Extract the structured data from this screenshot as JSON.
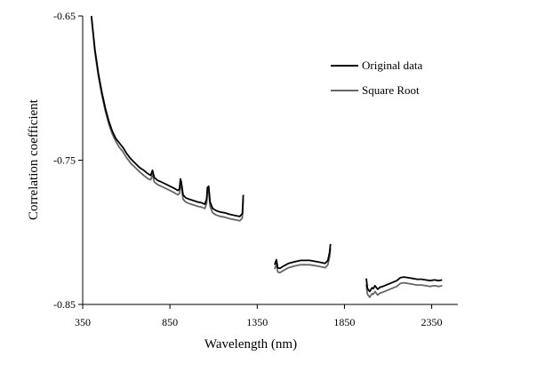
{
  "chart_data": {
    "type": "line",
    "title": "",
    "xlabel": "Wavelength (nm)",
    "ylabel": "Correlation coefficient",
    "xlim": [
      350,
      2500
    ],
    "ylim": [
      -0.85,
      -0.65
    ],
    "x_ticks": [
      350,
      850,
      1350,
      1850,
      2350
    ],
    "x_tick_labels": [
      "350",
      "850",
      "1350",
      "1850",
      "2350"
    ],
    "y_ticks": [
      -0.65,
      -0.75,
      -0.85
    ],
    "y_tick_labels": [
      "-0.65",
      "-0.75",
      "-0.85"
    ],
    "grid": false,
    "legend_position": "top-right",
    "series": [
      {
        "name": "Original data",
        "color": "#000000",
        "segments": [
          [
            [
              400,
              -0.65
            ],
            [
              420,
              -0.673
            ],
            [
              440,
              -0.69
            ],
            [
              460,
              -0.703
            ],
            [
              480,
              -0.714
            ],
            [
              500,
              -0.723
            ],
            [
              520,
              -0.73
            ],
            [
              540,
              -0.735
            ],
            [
              560,
              -0.738
            ],
            [
              580,
              -0.741
            ],
            [
              600,
              -0.745
            ],
            [
              625,
              -0.749
            ],
            [
              650,
              -0.752
            ],
            [
              675,
              -0.755
            ],
            [
              700,
              -0.757
            ],
            [
              725,
              -0.7595
            ],
            [
              740,
              -0.7605
            ],
            [
              750,
              -0.757
            ],
            [
              760,
              -0.762
            ],
            [
              780,
              -0.764
            ],
            [
              800,
              -0.765
            ],
            [
              825,
              -0.7665
            ],
            [
              850,
              -0.768
            ],
            [
              875,
              -0.7695
            ],
            [
              895,
              -0.771
            ],
            [
              905,
              -0.77
            ],
            [
              910,
              -0.763
            ],
            [
              915,
              -0.765
            ],
            [
              925,
              -0.774
            ],
            [
              940,
              -0.776
            ],
            [
              960,
              -0.777
            ],
            [
              985,
              -0.778
            ],
            [
              1010,
              -0.779
            ],
            [
              1030,
              -0.7795
            ],
            [
              1050,
              -0.7805
            ],
            [
              1060,
              -0.777
            ],
            [
              1065,
              -0.769
            ],
            [
              1072,
              -0.768
            ],
            [
              1080,
              -0.779
            ],
            [
              1095,
              -0.7835
            ],
            [
              1115,
              -0.785
            ],
            [
              1140,
              -0.786
            ],
            [
              1165,
              -0.7865
            ],
            [
              1190,
              -0.7875
            ],
            [
              1210,
              -0.788
            ],
            [
              1230,
              -0.7885
            ],
            [
              1250,
              -0.789
            ],
            [
              1265,
              -0.787
            ],
            [
              1270,
              -0.774
            ]
          ],
          [
            [
              1450,
              -0.8225
            ],
            [
              1460,
              -0.819
            ],
            [
              1468,
              -0.8245
            ],
            [
              1480,
              -0.825
            ],
            [
              1500,
              -0.8235
            ],
            [
              1530,
              -0.8215
            ],
            [
              1560,
              -0.8205
            ],
            [
              1600,
              -0.8195
            ],
            [
              1650,
              -0.8195
            ],
            [
              1700,
              -0.8205
            ],
            [
              1740,
              -0.8215
            ],
            [
              1755,
              -0.8195
            ],
            [
              1765,
              -0.814
            ],
            [
              1770,
              -0.808
            ]
          ],
          [
            [
              1975,
              -0.832
            ],
            [
              1982,
              -0.839
            ],
            [
              1995,
              -0.841
            ],
            [
              2008,
              -0.8385
            ],
            [
              2015,
              -0.839
            ],
            [
              2025,
              -0.837
            ],
            [
              2040,
              -0.8395
            ],
            [
              2055,
              -0.838
            ],
            [
              2070,
              -0.8375
            ],
            [
              2090,
              -0.8365
            ],
            [
              2110,
              -0.8355
            ],
            [
              2130,
              -0.8345
            ],
            [
              2150,
              -0.8335
            ],
            [
              2170,
              -0.8315
            ],
            [
              2190,
              -0.831
            ],
            [
              2215,
              -0.8315
            ],
            [
              2240,
              -0.832
            ],
            [
              2265,
              -0.8325
            ],
            [
              2290,
              -0.8325
            ],
            [
              2315,
              -0.833
            ],
            [
              2340,
              -0.8335
            ],
            [
              2365,
              -0.833
            ],
            [
              2390,
              -0.8335
            ],
            [
              2410,
              -0.833
            ]
          ]
        ]
      },
      {
        "name": "Square Root",
        "color": "#666666",
        "segments": [
          [
            [
              400,
              -0.65
            ],
            [
              420,
              -0.675
            ],
            [
              440,
              -0.692
            ],
            [
              460,
              -0.705
            ],
            [
              480,
              -0.716
            ],
            [
              500,
              -0.725
            ],
            [
              520,
              -0.732
            ],
            [
              540,
              -0.737
            ],
            [
              560,
              -0.741
            ],
            [
              580,
              -0.744
            ],
            [
              600,
              -0.748
            ],
            [
              625,
              -0.752
            ],
            [
              650,
              -0.755
            ],
            [
              675,
              -0.758
            ],
            [
              700,
              -0.7605
            ],
            [
              725,
              -0.763
            ],
            [
              740,
              -0.7635
            ],
            [
              750,
              -0.76
            ],
            [
              760,
              -0.765
            ],
            [
              780,
              -0.767
            ],
            [
              800,
              -0.768
            ],
            [
              825,
              -0.7695
            ],
            [
              850,
              -0.771
            ],
            [
              875,
              -0.7725
            ],
            [
              895,
              -0.774
            ],
            [
              905,
              -0.773
            ],
            [
              910,
              -0.766
            ],
            [
              915,
              -0.768
            ],
            [
              925,
              -0.777
            ],
            [
              940,
              -0.779
            ],
            [
              960,
              -0.78
            ],
            [
              985,
              -0.781
            ],
            [
              1010,
              -0.782
            ],
            [
              1030,
              -0.7825
            ],
            [
              1050,
              -0.7835
            ],
            [
              1060,
              -0.78
            ],
            [
              1065,
              -0.772
            ],
            [
              1072,
              -0.771
            ],
            [
              1080,
              -0.782
            ],
            [
              1095,
              -0.7865
            ],
            [
              1115,
              -0.788
            ],
            [
              1140,
              -0.789
            ],
            [
              1165,
              -0.7895
            ],
            [
              1190,
              -0.7905
            ],
            [
              1210,
              -0.791
            ],
            [
              1230,
              -0.7915
            ],
            [
              1250,
              -0.792
            ],
            [
              1265,
              -0.79
            ],
            [
              1270,
              -0.777
            ]
          ],
          [
            [
              1450,
              -0.8255
            ],
            [
              1460,
              -0.822
            ],
            [
              1468,
              -0.8275
            ],
            [
              1480,
              -0.828
            ],
            [
              1500,
              -0.8265
            ],
            [
              1530,
              -0.8245
            ],
            [
              1560,
              -0.8235
            ],
            [
              1600,
              -0.8225
            ],
            [
              1650,
              -0.8225
            ],
            [
              1700,
              -0.8235
            ],
            [
              1740,
              -0.8245
            ],
            [
              1755,
              -0.8225
            ],
            [
              1765,
              -0.817
            ],
            [
              1770,
              -0.811
            ]
          ],
          [
            [
              1975,
              -0.836
            ],
            [
              1982,
              -0.843
            ],
            [
              1995,
              -0.845
            ],
            [
              2008,
              -0.8425
            ],
            [
              2015,
              -0.843
            ],
            [
              2025,
              -0.841
            ],
            [
              2040,
              -0.8435
            ],
            [
              2055,
              -0.842
            ],
            [
              2070,
              -0.8415
            ],
            [
              2090,
              -0.8405
            ],
            [
              2110,
              -0.8395
            ],
            [
              2130,
              -0.8385
            ],
            [
              2150,
              -0.8375
            ],
            [
              2170,
              -0.8355
            ],
            [
              2190,
              -0.835
            ],
            [
              2215,
              -0.8355
            ],
            [
              2240,
              -0.836
            ],
            [
              2265,
              -0.8365
            ],
            [
              2290,
              -0.8365
            ],
            [
              2315,
              -0.837
            ],
            [
              2340,
              -0.8375
            ],
            [
              2365,
              -0.837
            ],
            [
              2390,
              -0.8375
            ],
            [
              2410,
              -0.837
            ]
          ]
        ]
      }
    ]
  }
}
